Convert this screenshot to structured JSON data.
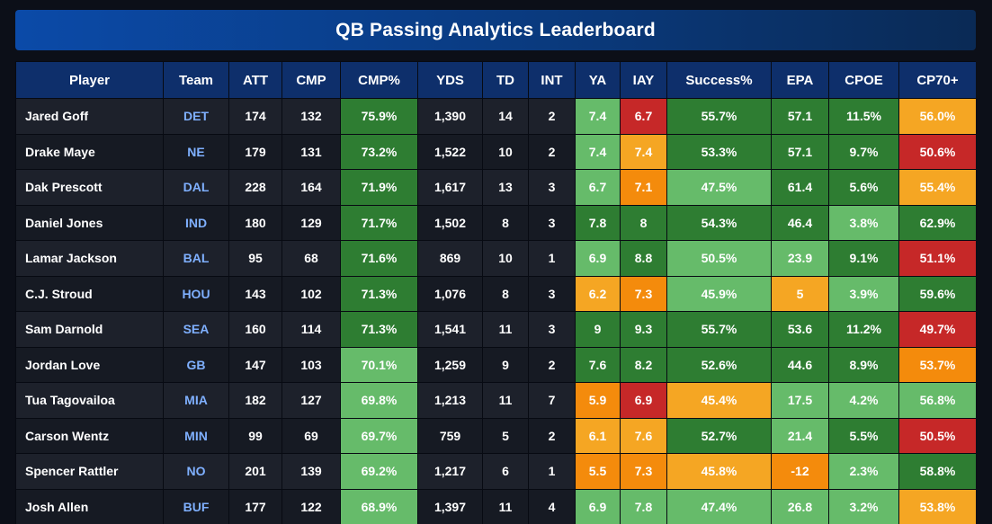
{
  "title": "QB Passing Analytics Leaderboard",
  "colors": {
    "dark_green": "#2e7d32",
    "light_green": "#66bb6a",
    "yellow": "#f5a623",
    "orange": "#f48b0c",
    "red": "#c62828",
    "header": "#0e2f6b",
    "team_text": "#7fb0ff"
  },
  "columns": [
    "Player",
    "Team",
    "ATT",
    "CMP",
    "CMP%",
    "YDS",
    "TD",
    "INT",
    "YA",
    "IAY",
    "Success%",
    "EPA",
    "CPOE",
    "CP70+"
  ],
  "rows": [
    {
      "Player": "Jared Goff",
      "Team": "DET",
      "ATT": "174",
      "CMP": "132",
      "CMP%": "75.9%",
      "YDS": "1,390",
      "TD": "14",
      "INT": "2",
      "YA": "7.4",
      "IAY": "6.7",
      "Success%": "55.7%",
      "EPA": "57.1",
      "CPOE": "11.5%",
      "CP70+": "56.0%",
      "tiers": {
        "CMP%": "dg",
        "YA": "lg",
        "IAY": "rd",
        "Success%": "dg",
        "EPA": "dg",
        "CPOE": "dg",
        "CP70+": "ye"
      }
    },
    {
      "Player": "Drake Maye",
      "Team": "NE",
      "ATT": "179",
      "CMP": "131",
      "CMP%": "73.2%",
      "YDS": "1,522",
      "TD": "10",
      "INT": "2",
      "YA": "7.4",
      "IAY": "7.4",
      "Success%": "53.3%",
      "EPA": "57.1",
      "CPOE": "9.7%",
      "CP70+": "50.6%",
      "tiers": {
        "CMP%": "dg",
        "YA": "lg",
        "IAY": "ye",
        "Success%": "dg",
        "EPA": "dg",
        "CPOE": "dg",
        "CP70+": "rd"
      }
    },
    {
      "Player": "Dak Prescott",
      "Team": "DAL",
      "ATT": "228",
      "CMP": "164",
      "CMP%": "71.9%",
      "YDS": "1,617",
      "TD": "13",
      "INT": "3",
      "YA": "6.7",
      "IAY": "7.1",
      "Success%": "47.5%",
      "EPA": "61.4",
      "CPOE": "5.6%",
      "CP70+": "55.4%",
      "tiers": {
        "CMP%": "dg",
        "YA": "lg",
        "IAY": "or",
        "Success%": "lg",
        "EPA": "dg",
        "CPOE": "dg",
        "CP70+": "ye"
      }
    },
    {
      "Player": "Daniel Jones",
      "Team": "IND",
      "ATT": "180",
      "CMP": "129",
      "CMP%": "71.7%",
      "YDS": "1,502",
      "TD": "8",
      "INT": "3",
      "YA": "7.8",
      "IAY": "8",
      "Success%": "54.3%",
      "EPA": "46.4",
      "CPOE": "3.8%",
      "CP70+": "62.9%",
      "tiers": {
        "CMP%": "dg",
        "YA": "dg",
        "IAY": "dg",
        "Success%": "dg",
        "EPA": "dg",
        "CPOE": "lg",
        "CP70+": "dg"
      }
    },
    {
      "Player": "Lamar Jackson",
      "Team": "BAL",
      "ATT": "95",
      "CMP": "68",
      "CMP%": "71.6%",
      "YDS": "869",
      "TD": "10",
      "INT": "1",
      "YA": "6.9",
      "IAY": "8.8",
      "Success%": "50.5%",
      "EPA": "23.9",
      "CPOE": "9.1%",
      "CP70+": "51.1%",
      "tiers": {
        "CMP%": "dg",
        "YA": "lg",
        "IAY": "dg",
        "Success%": "lg",
        "EPA": "lg",
        "CPOE": "dg",
        "CP70+": "rd"
      }
    },
    {
      "Player": "C.J. Stroud",
      "Team": "HOU",
      "ATT": "143",
      "CMP": "102",
      "CMP%": "71.3%",
      "YDS": "1,076",
      "TD": "8",
      "INT": "3",
      "YA": "6.2",
      "IAY": "7.3",
      "Success%": "45.9%",
      "EPA": "5",
      "CPOE": "3.9%",
      "CP70+": "59.6%",
      "tiers": {
        "CMP%": "dg",
        "YA": "ye",
        "IAY": "or",
        "Success%": "lg",
        "EPA": "ye",
        "CPOE": "lg",
        "CP70+": "dg"
      }
    },
    {
      "Player": "Sam Darnold",
      "Team": "SEA",
      "ATT": "160",
      "CMP": "114",
      "CMP%": "71.3%",
      "YDS": "1,541",
      "TD": "11",
      "INT": "3",
      "YA": "9",
      "IAY": "9.3",
      "Success%": "55.7%",
      "EPA": "53.6",
      "CPOE": "11.2%",
      "CP70+": "49.7%",
      "tiers": {
        "CMP%": "dg",
        "YA": "dg",
        "IAY": "dg",
        "Success%": "dg",
        "EPA": "dg",
        "CPOE": "dg",
        "CP70+": "rd"
      }
    },
    {
      "Player": "Jordan Love",
      "Team": "GB",
      "ATT": "147",
      "CMP": "103",
      "CMP%": "70.1%",
      "YDS": "1,259",
      "TD": "9",
      "INT": "2",
      "YA": "7.6",
      "IAY": "8.2",
      "Success%": "52.6%",
      "EPA": "44.6",
      "CPOE": "8.9%",
      "CP70+": "53.7%",
      "tiers": {
        "CMP%": "lg",
        "YA": "dg",
        "IAY": "dg",
        "Success%": "dg",
        "EPA": "dg",
        "CPOE": "dg",
        "CP70+": "or"
      }
    },
    {
      "Player": "Tua Tagovailoa",
      "Team": "MIA",
      "ATT": "182",
      "CMP": "127",
      "CMP%": "69.8%",
      "YDS": "1,213",
      "TD": "11",
      "INT": "7",
      "YA": "5.9",
      "IAY": "6.9",
      "Success%": "45.4%",
      "EPA": "17.5",
      "CPOE": "4.2%",
      "CP70+": "56.8%",
      "tiers": {
        "CMP%": "lg",
        "YA": "or",
        "IAY": "rd",
        "Success%": "ye",
        "EPA": "lg",
        "CPOE": "lg",
        "CP70+": "lg"
      }
    },
    {
      "Player": "Carson Wentz",
      "Team": "MIN",
      "ATT": "99",
      "CMP": "69",
      "CMP%": "69.7%",
      "YDS": "759",
      "TD": "5",
      "INT": "2",
      "YA": "6.1",
      "IAY": "7.6",
      "Success%": "52.7%",
      "EPA": "21.4",
      "CPOE": "5.5%",
      "CP70+": "50.5%",
      "tiers": {
        "CMP%": "lg",
        "YA": "ye",
        "IAY": "ye",
        "Success%": "dg",
        "EPA": "lg",
        "CPOE": "dg",
        "CP70+": "rd"
      }
    },
    {
      "Player": "Spencer Rattler",
      "Team": "NO",
      "ATT": "201",
      "CMP": "139",
      "CMP%": "69.2%",
      "YDS": "1,217",
      "TD": "6",
      "INT": "1",
      "YA": "5.5",
      "IAY": "7.3",
      "Success%": "45.8%",
      "EPA": "-12",
      "CPOE": "2.3%",
      "CP70+": "58.8%",
      "tiers": {
        "CMP%": "lg",
        "YA": "or",
        "IAY": "or",
        "Success%": "ye",
        "EPA": "or",
        "CPOE": "lg",
        "CP70+": "dg"
      }
    },
    {
      "Player": "Josh Allen",
      "Team": "BUF",
      "ATT": "177",
      "CMP": "122",
      "CMP%": "68.9%",
      "YDS": "1,397",
      "TD": "11",
      "INT": "4",
      "YA": "6.9",
      "IAY": "7.8",
      "Success%": "47.4%",
      "EPA": "26.8",
      "CPOE": "3.2%",
      "CP70+": "53.8%",
      "tiers": {
        "CMP%": "lg",
        "YA": "lg",
        "IAY": "lg",
        "Success%": "lg",
        "EPA": "lg",
        "CPOE": "lg",
        "CP70+": "ye"
      }
    }
  ]
}
